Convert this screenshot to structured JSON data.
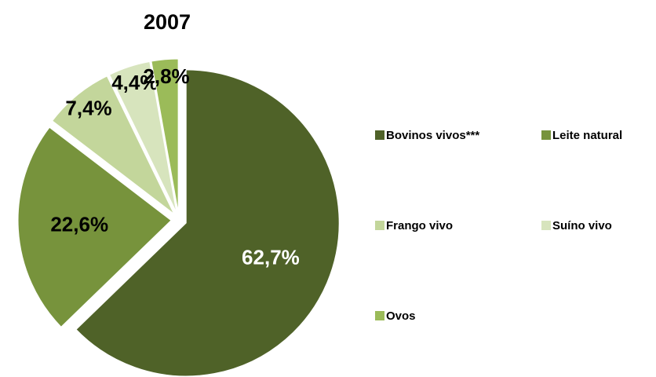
{
  "chart_data": {
    "type": "pie",
    "title": "2007",
    "categories": [
      "Bovinos vivos***",
      "Leite natural",
      "Frango vivo",
      "Suíno vivo",
      "Ovos"
    ],
    "values": [
      62.7,
      22.6,
      7.4,
      4.4,
      2.8
    ],
    "value_labels": [
      "62,7%",
      "22,6%",
      "7,4%",
      "4,4%",
      "2,8%"
    ],
    "colors": [
      "#4f6228",
      "#77933c",
      "#c3d69b",
      "#d7e4bd",
      "#9bbb59"
    ],
    "legend": "right"
  }
}
